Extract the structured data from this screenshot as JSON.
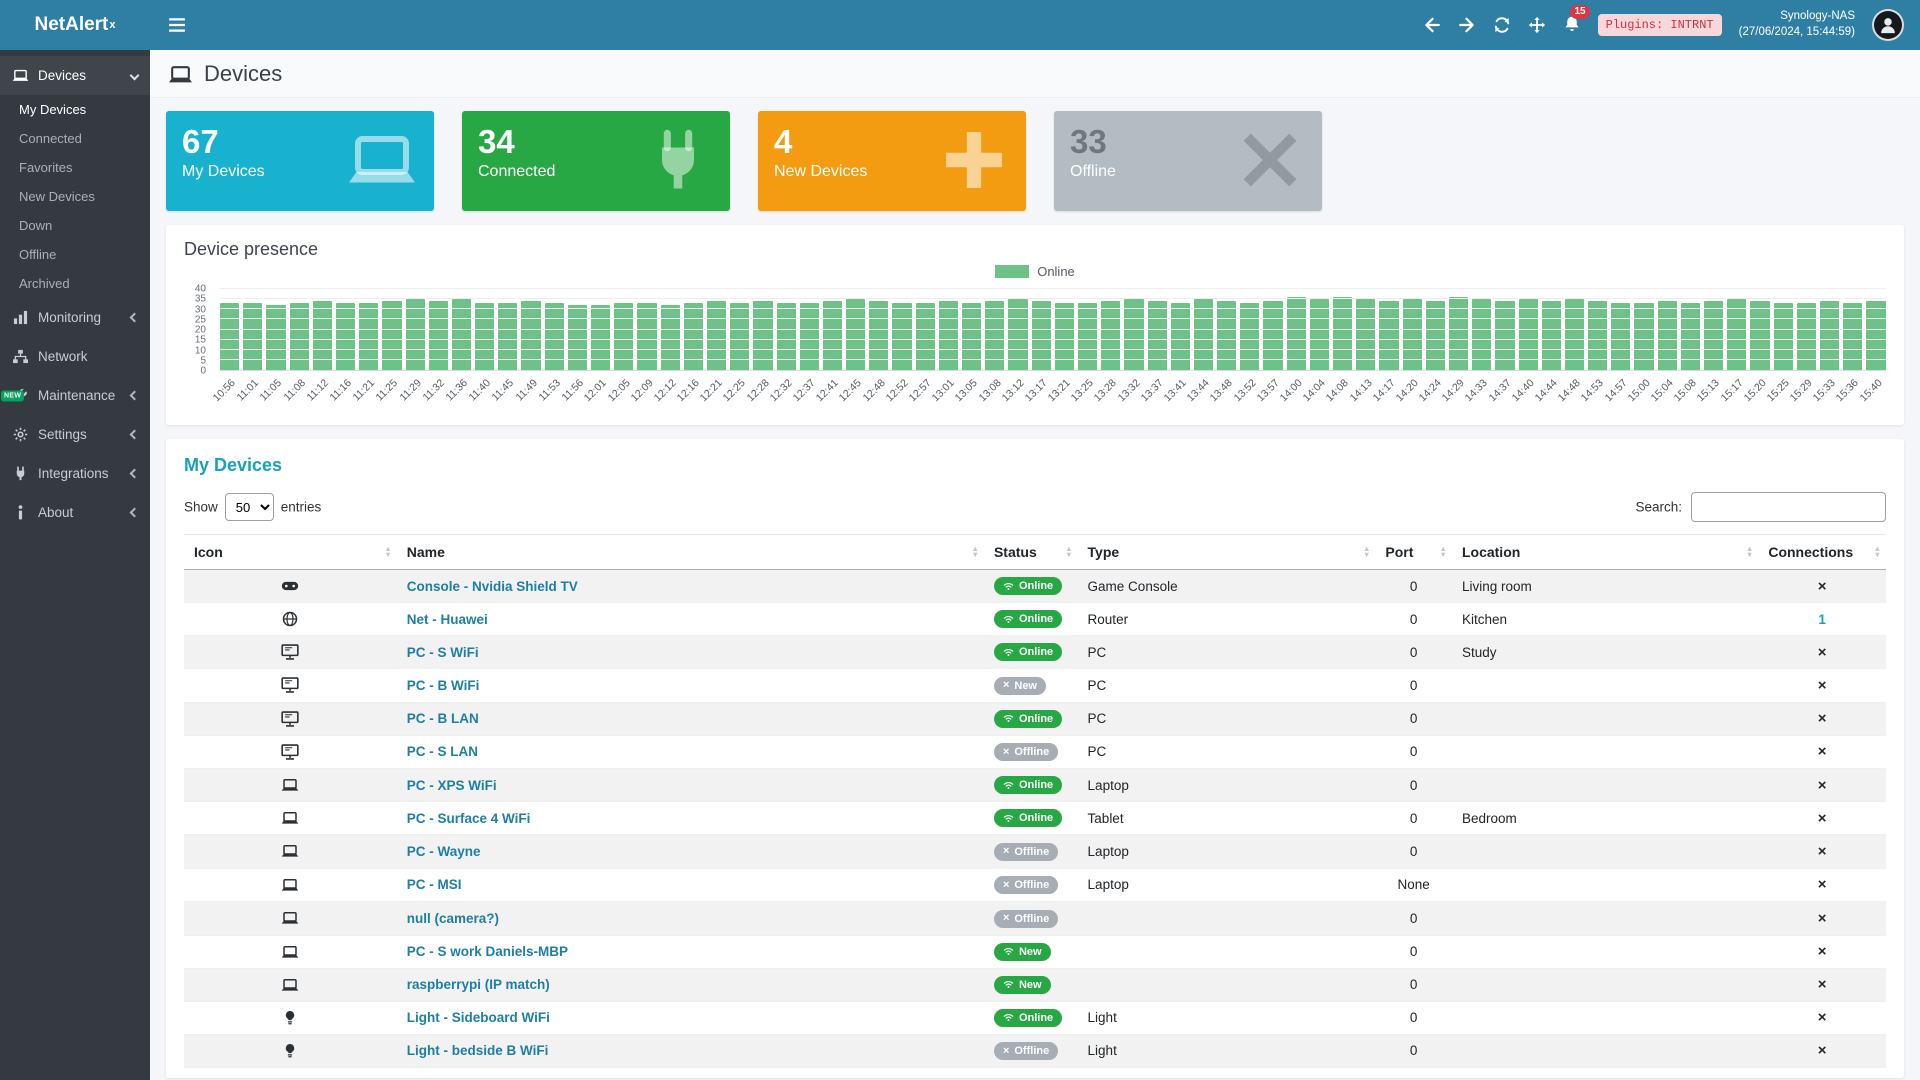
{
  "navbar": {
    "brand_prefix": "NetAlert",
    "brand_sup": "x",
    "notification_count": "15",
    "plugins_badge": "Plugins: INTRNT",
    "host_name": "Synology-NAS",
    "host_time": "(27/06/2024, 15:44:59)"
  },
  "sidebar": {
    "sections": [
      {
        "label": "Devices"
      },
      {
        "label": "Monitoring"
      },
      {
        "label": "Network"
      },
      {
        "label": "Maintenance",
        "tag": "NEW"
      },
      {
        "label": "Settings"
      },
      {
        "label": "Integrations"
      },
      {
        "label": "About"
      }
    ],
    "devices_submenu": [
      "My Devices",
      "Connected",
      "Favorites",
      "New Devices",
      "Down",
      "Offline",
      "Archived"
    ]
  },
  "page": {
    "title": "Devices"
  },
  "info_boxes": [
    {
      "value": "67",
      "label": "My Devices",
      "color": "#18b2cf",
      "icon": "laptop",
      "value_color": "#ffffff",
      "label_color": "#ffffff",
      "icon_color": "rgba(255,255,255,0.55)"
    },
    {
      "value": "34",
      "label": "Connected",
      "color": "#28a745",
      "icon": "plug",
      "value_color": "#ffffff",
      "label_color": "#ffffff",
      "icon_color": "rgba(255,255,255,0.5)"
    },
    {
      "value": "4",
      "label": "New Devices",
      "color": "#f39c12",
      "icon": "plus",
      "value_color": "#ffffff",
      "label_color": "#ffffff",
      "icon_color": "rgba(255,255,255,0.55)"
    },
    {
      "value": "33",
      "label": "Offline",
      "color": "#b4bcc3",
      "icon": "xthick",
      "value_color": "#6f7880",
      "label_color": "#ffffff",
      "icon_color": "rgba(0,0,0,0.18)"
    }
  ],
  "chart_data": {
    "type": "bar",
    "title": "Device presence",
    "legend_label": "Online",
    "legend_position": "top-center",
    "grid": true,
    "ylim": [
      0,
      40
    ],
    "yticks": [
      0,
      5,
      10,
      15,
      20,
      25,
      30,
      35,
      40
    ],
    "x": [
      "10:56",
      "11:01",
      "11:05",
      "11:08",
      "11:12",
      "11:16",
      "11:21",
      "11:25",
      "11:29",
      "11:32",
      "11:36",
      "11:40",
      "11:45",
      "11:49",
      "11:53",
      "11:56",
      "12:01",
      "12:05",
      "12:09",
      "12:12",
      "12:16",
      "12:21",
      "12:25",
      "12:28",
      "12:32",
      "12:37",
      "12:41",
      "12:45",
      "12:48",
      "12:52",
      "12:57",
      "13:01",
      "13:05",
      "13:08",
      "13:12",
      "13:17",
      "13:21",
      "13:25",
      "13:28",
      "13:32",
      "13:37",
      "13:41",
      "13:44",
      "13:48",
      "13:52",
      "13:57",
      "14:00",
      "14:04",
      "14:08",
      "14:13",
      "14:17",
      "14:20",
      "14:24",
      "14:29",
      "14:33",
      "14:37",
      "14:40",
      "14:44",
      "14:48",
      "14:53",
      "14:57",
      "15:00",
      "15:04",
      "15:08",
      "15:13",
      "15:17",
      "15:20",
      "15:25",
      "15:29",
      "15:33",
      "15:36",
      "15:40"
    ],
    "series": [
      {
        "name": "Online",
        "color": "#6fc287",
        "values": [
          33,
          33,
          32,
          33,
          34,
          33,
          33,
          34,
          35,
          34,
          35,
          33,
          33,
          34,
          33,
          32,
          32,
          33,
          33,
          32,
          33,
          34,
          33,
          34,
          33,
          33,
          34,
          35,
          34,
          33,
          33,
          34,
          33,
          34,
          35,
          34,
          33,
          33,
          34,
          35,
          34,
          33,
          35,
          34,
          33,
          34,
          36,
          35,
          36,
          35,
          34,
          35,
          34,
          36,
          35,
          34,
          35,
          34,
          35,
          34,
          33,
          33,
          34,
          33,
          34,
          35,
          34,
          33,
          33,
          34,
          33,
          34
        ]
      }
    ]
  },
  "devices_table": {
    "title": "My Devices",
    "show_label": "Show",
    "page_length": "50",
    "entries_label": "entries",
    "search_label": "Search:",
    "columns": [
      "Icon",
      "Name",
      "Status",
      "Type",
      "Port",
      "Location",
      "Connections"
    ],
    "rows": [
      {
        "icon": "gamepad",
        "name": "Console - Nvidia Shield TV",
        "status": "Online",
        "state": "online",
        "type": "Game Console",
        "port": "0",
        "location": "Living room",
        "connections": "x"
      },
      {
        "icon": "globe",
        "name": "Net - Huawei",
        "status": "Online",
        "state": "online",
        "type": "Router",
        "port": "0",
        "location": "Kitchen",
        "connections": "1"
      },
      {
        "icon": "desktop",
        "name": "PC - S WiFi",
        "status": "Online",
        "state": "online",
        "type": "PC",
        "port": "0",
        "location": "Study",
        "connections": "x"
      },
      {
        "icon": "desktop",
        "name": "PC - B WiFi",
        "status": "New",
        "state": "offline",
        "type": "PC",
        "port": "0",
        "location": "",
        "connections": "x"
      },
      {
        "icon": "desktop",
        "name": "PC - B LAN",
        "status": "Online",
        "state": "online",
        "type": "PC",
        "port": "0",
        "location": "",
        "connections": "x"
      },
      {
        "icon": "desktop",
        "name": "PC - S LAN",
        "status": "Offline",
        "state": "offline",
        "type": "PC",
        "port": "0",
        "location": "",
        "connections": "x"
      },
      {
        "icon": "laptop",
        "name": "PC - XPS WiFi",
        "status": "Online",
        "state": "online",
        "type": "Laptop",
        "port": "0",
        "location": "",
        "connections": "x"
      },
      {
        "icon": "laptop",
        "name": "PC - Surface 4 WiFi",
        "status": "Online",
        "state": "online",
        "type": "Tablet",
        "port": "0",
        "location": "Bedroom",
        "connections": "x"
      },
      {
        "icon": "laptop",
        "name": "PC - Wayne",
        "status": "Offline",
        "state": "offline",
        "type": "Laptop",
        "port": "0",
        "location": "",
        "connections": "x"
      },
      {
        "icon": "laptop",
        "name": "PC - MSI",
        "status": "Offline",
        "state": "offline",
        "type": "Laptop",
        "port": "None",
        "location": "",
        "connections": "x"
      },
      {
        "icon": "laptop",
        "name": "null (camera?)",
        "status": "Offline",
        "state": "offline",
        "type": "",
        "port": "0",
        "location": "",
        "connections": "x"
      },
      {
        "icon": "laptop",
        "name": "PC - S work Daniels-MBP",
        "status": "New",
        "state": "online",
        "type": "",
        "port": "0",
        "location": "",
        "connections": "x"
      },
      {
        "icon": "laptop",
        "name": "raspberrypi (IP match)",
        "status": "New",
        "state": "online",
        "type": "",
        "port": "0",
        "location": "",
        "connections": "x"
      },
      {
        "icon": "lightbulb",
        "name": "Light - Sideboard WiFi",
        "status": "Online",
        "state": "online",
        "type": "Light",
        "port": "0",
        "location": "",
        "connections": "x"
      },
      {
        "icon": "lightbulb",
        "name": "Light - bedside B WiFi",
        "status": "Offline",
        "state": "offline",
        "type": "Light",
        "port": "0",
        "location": "",
        "connections": "x"
      }
    ]
  }
}
